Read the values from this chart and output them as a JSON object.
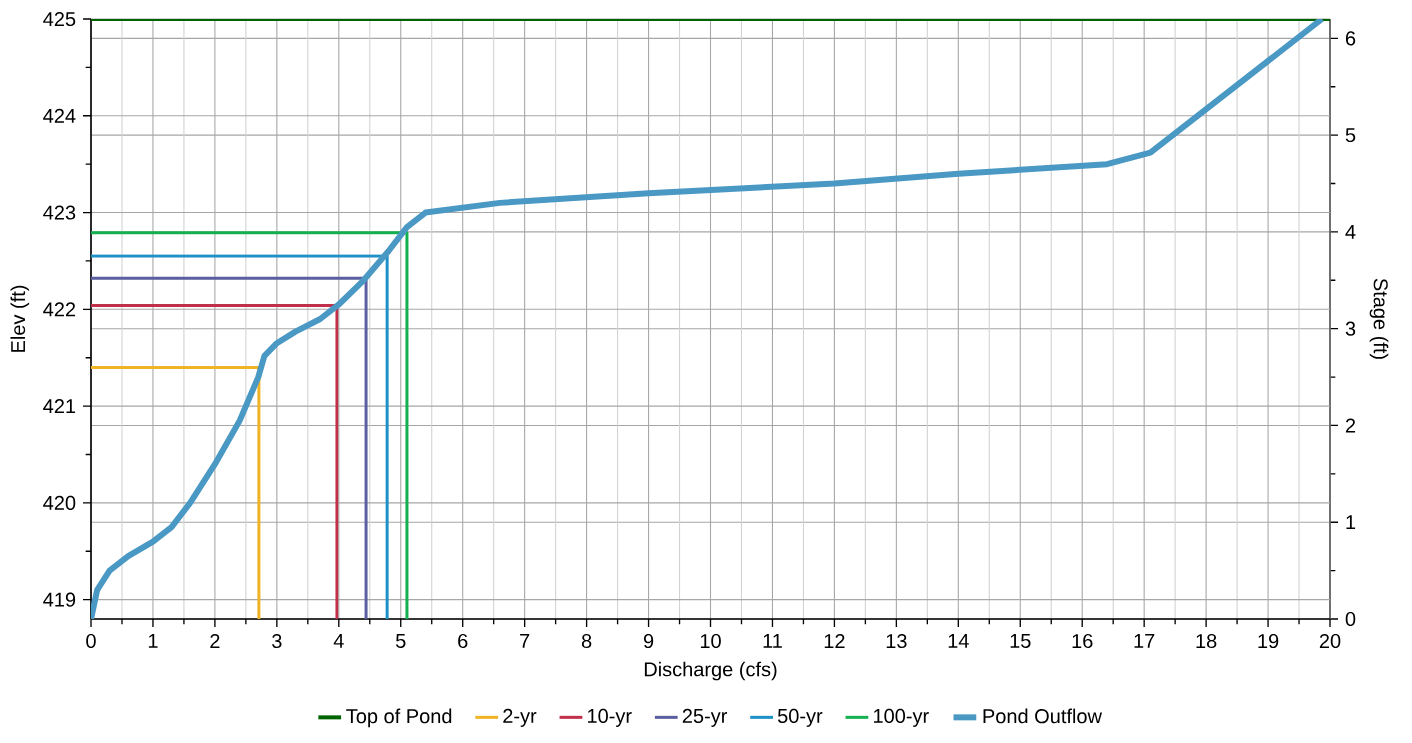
{
  "chart_data": {
    "type": "line",
    "xlabel": "Discharge (cfs)",
    "ylabel": "Elev (ft)",
    "y2label": "Stage (ft)",
    "xlim": [
      0,
      20
    ],
    "xticks": [
      0,
      1,
      2,
      3,
      4,
      5,
      6,
      7,
      8,
      9,
      10,
      11,
      12,
      13,
      14,
      15,
      16,
      17,
      18,
      19,
      20
    ],
    "ylim": [
      418.8,
      425
    ],
    "yticks": [
      419,
      420,
      421,
      422,
      423,
      424,
      425
    ],
    "y2lim": [
      0,
      6.2
    ],
    "y2ticks": [
      0,
      1,
      2,
      3,
      4,
      5,
      6
    ],
    "grid": true,
    "legend": "bottom",
    "marker": "none",
    "line_style": "solid",
    "series": [
      {
        "name": "Top of Pond",
        "color": "#006400",
        "x": [
          0,
          20
        ],
        "values": [
          425,
          425
        ]
      },
      {
        "name": "2-yr",
        "color": "#f0b323",
        "x": [
          0,
          2.71,
          2.71
        ],
        "values": [
          421.4,
          421.4,
          418.8
        ]
      },
      {
        "name": "10-yr",
        "color": "#c0304a",
        "x": [
          0,
          3.97,
          3.97
        ],
        "values": [
          422.04,
          422.04,
          418.8
        ]
      },
      {
        "name": "25-yr",
        "color": "#5b5ea0",
        "x": [
          0,
          4.44,
          4.44
        ],
        "values": [
          422.32,
          422.32,
          418.8
        ]
      },
      {
        "name": "50-yr",
        "color": "#1e90c8",
        "x": [
          0,
          4.78,
          4.78
        ],
        "values": [
          422.55,
          422.55,
          418.8
        ]
      },
      {
        "name": "100-yr",
        "color": "#14b050",
        "x": [
          0,
          5.1,
          5.1
        ],
        "values": [
          422.79,
          422.79,
          418.8
        ]
      },
      {
        "name": "Pond Outflow",
        "color": "#4a98c4",
        "x": [
          0,
          0.1,
          0.3,
          0.6,
          1.0,
          1.3,
          1.6,
          2.0,
          2.4,
          2.7,
          2.8,
          3.0,
          3.3,
          3.7,
          4.0,
          4.4,
          4.8,
          5.1,
          5.4,
          6.6,
          9,
          12,
          14,
          16.4,
          17.1,
          19.87
        ],
        "values": [
          418.8,
          419.1,
          419.3,
          419.45,
          419.6,
          419.75,
          420.0,
          420.4,
          420.85,
          421.3,
          421.52,
          421.65,
          421.77,
          421.9,
          422.05,
          422.3,
          422.6,
          422.85,
          423.0,
          423.1,
          423.2,
          423.3,
          423.4,
          423.5,
          423.62,
          425.0
        ]
      }
    ]
  }
}
